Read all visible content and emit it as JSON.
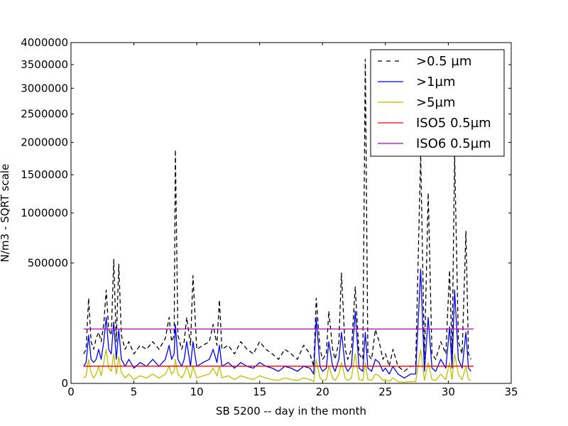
{
  "chart_data": {
    "type": "line",
    "title": "",
    "xlabel": "SB 5200 -- day in the month",
    "ylabel": "N/m3 - SQRT scale",
    "xlim": [
      0,
      35
    ],
    "ylim": [
      0,
      4000000
    ],
    "y_scale": "sqrt",
    "grid": false,
    "legend_position": "top-right",
    "x_ticks": [
      0,
      5,
      10,
      15,
      20,
      25,
      30,
      35
    ],
    "y_ticks": [
      0,
      500000,
      1000000,
      1500000,
      2000000,
      2500000,
      3000000,
      3500000,
      4000000
    ],
    "series": [
      {
        "name": ">0.5 µm",
        "color": "#000000",
        "style": "dashed",
        "x": [
          1.0,
          1.2,
          1.4,
          1.6,
          1.8,
          2.0,
          2.2,
          2.4,
          2.6,
          2.8,
          3.0,
          3.2,
          3.4,
          3.6,
          3.8,
          4.0,
          4.3,
          4.6,
          5.0,
          5.5,
          6.0,
          6.5,
          7.0,
          7.5,
          7.8,
          8.0,
          8.2,
          8.3,
          8.5,
          8.8,
          9.0,
          9.2,
          9.5,
          9.7,
          10.0,
          10.5,
          11.0,
          11.3,
          11.6,
          11.8,
          12.0,
          12.5,
          13.0,
          13.5,
          14.0,
          14.5,
          15.0,
          15.5,
          16.0,
          16.5,
          17.0,
          17.5,
          18.0,
          18.5,
          19.0,
          19.3,
          19.5,
          19.8,
          20.0,
          20.3,
          20.5,
          20.8,
          21.0,
          21.3,
          21.5,
          21.8,
          22.0,
          22.3,
          22.6,
          22.9,
          23.2,
          23.4,
          23.6,
          23.9,
          24.2,
          24.5,
          24.8,
          25.0,
          25.3,
          25.6,
          26.0,
          26.5,
          27.0,
          27.4,
          27.8,
          28.1,
          28.4,
          28.7,
          29.0,
          29.4,
          29.8,
          30.1,
          30.3,
          30.5,
          30.8,
          31.1,
          31.4,
          31.6,
          31.8
        ],
        "values": [
          30000,
          40000,
          250000,
          60000,
          40000,
          70000,
          90000,
          60000,
          120000,
          300000,
          100000,
          80000,
          530000,
          60000,
          490000,
          80000,
          40000,
          60000,
          30000,
          50000,
          40000,
          60000,
          40000,
          70000,
          150000,
          60000,
          80000,
          1880000,
          80000,
          40000,
          60000,
          150000,
          50000,
          400000,
          40000,
          50000,
          60000,
          120000,
          50000,
          240000,
          40000,
          50000,
          30000,
          60000,
          40000,
          30000,
          60000,
          40000,
          30000,
          20000,
          40000,
          30000,
          20000,
          50000,
          30000,
          10000,
          250000,
          40000,
          20000,
          30000,
          180000,
          40000,
          20000,
          60000,
          420000,
          40000,
          20000,
          40000,
          320000,
          30000,
          20000,
          3620000,
          30000,
          20000,
          100000,
          60000,
          20000,
          30000,
          10000,
          40000,
          10000,
          5000,
          10000,
          10000,
          1800000,
          20000,
          1250000,
          30000,
          20000,
          60000,
          30000,
          440000,
          30000,
          1800000,
          60000,
          30000,
          800000,
          30000,
          20000
        ]
      },
      {
        "name": ">1µm",
        "color": "#0000ff",
        "style": "solid",
        "x": [
          1.0,
          1.2,
          1.4,
          1.6,
          1.8,
          2.0,
          2.2,
          2.4,
          2.6,
          2.8,
          3.0,
          3.2,
          3.4,
          3.6,
          3.8,
          4.0,
          4.3,
          4.6,
          5.0,
          5.5,
          6.0,
          6.5,
          7.0,
          7.5,
          7.8,
          8.0,
          8.2,
          8.3,
          8.5,
          8.8,
          9.0,
          9.2,
          9.5,
          9.7,
          10.0,
          10.5,
          11.0,
          11.3,
          11.6,
          11.8,
          12.0,
          12.5,
          13.0,
          13.5,
          14.0,
          14.5,
          15.0,
          15.5,
          16.0,
          16.5,
          17.0,
          17.5,
          18.0,
          18.5,
          19.0,
          19.3,
          19.5,
          19.8,
          20.0,
          20.3,
          20.5,
          20.8,
          21.0,
          21.3,
          21.5,
          21.8,
          22.0,
          22.3,
          22.6,
          22.9,
          23.2,
          23.4,
          23.6,
          23.9,
          24.2,
          24.5,
          24.8,
          25.0,
          25.3,
          25.6,
          26.0,
          26.5,
          27.0,
          27.4,
          27.8,
          28.1,
          28.4,
          28.7,
          29.0,
          29.4,
          29.8,
          30.1,
          30.3,
          30.5,
          30.8,
          31.1,
          31.4,
          31.6,
          31.8
        ],
        "values": [
          10000,
          15000,
          80000,
          20000,
          15000,
          20000,
          40000,
          20000,
          60000,
          150000,
          40000,
          30000,
          130000,
          20000,
          100000,
          20000,
          10000,
          20000,
          8000,
          15000,
          10000,
          20000,
          10000,
          20000,
          50000,
          20000,
          30000,
          120000,
          20000,
          10000,
          20000,
          60000,
          10000,
          60000,
          10000,
          15000,
          20000,
          40000,
          15000,
          50000,
          10000,
          15000,
          8000,
          15000,
          10000,
          8000,
          15000,
          10000,
          8000,
          5000,
          10000,
          8000,
          5000,
          10000,
          8000,
          3000,
          150000,
          10000,
          5000,
          8000,
          60000,
          10000,
          5000,
          20000,
          90000,
          10000,
          5000,
          10000,
          180000,
          8000,
          5000,
          90000,
          8000,
          5000,
          20000,
          15000,
          5000,
          8000,
          3000,
          10000,
          3000,
          1000,
          3000,
          3000,
          450000,
          5000,
          150000,
          8000,
          5000,
          20000,
          8000,
          110000,
          8000,
          300000,
          20000,
          8000,
          90000,
          8000,
          5000
        ]
      },
      {
        "name": ">5µm",
        "color": "#bfbf00",
        "style": "solid",
        "x": [
          1.0,
          1.2,
          1.4,
          1.6,
          1.8,
          2.0,
          2.2,
          2.4,
          2.6,
          2.8,
          3.0,
          3.2,
          3.4,
          3.6,
          3.8,
          4.0,
          4.3,
          4.6,
          5.0,
          5.5,
          6.0,
          6.5,
          7.0,
          7.5,
          7.8,
          8.0,
          8.2,
          8.3,
          8.5,
          8.8,
          9.0,
          9.2,
          9.5,
          9.7,
          10.0,
          10.5,
          11.0,
          11.3,
          11.6,
          11.8,
          12.0,
          12.5,
          13.0,
          13.5,
          14.0,
          14.5,
          15.0,
          15.5,
          16.0,
          16.5,
          17.0,
          17.5,
          18.0,
          18.5,
          19.0,
          19.3,
          19.5,
          19.8,
          20.0,
          20.3,
          20.5,
          20.8,
          21.0,
          21.3,
          21.5,
          21.8,
          22.0,
          22.3,
          22.6,
          22.9,
          23.2,
          23.4,
          23.6,
          23.9,
          24.2,
          24.5,
          24.8,
          25.0,
          25.3,
          25.6,
          26.0,
          26.5,
          27.0,
          27.4,
          27.8,
          28.1,
          28.4,
          28.7,
          29.0,
          29.4,
          29.8,
          30.1,
          30.3,
          30.5,
          30.8,
          31.1,
          31.4,
          31.6,
          31.8
        ],
        "values": [
          1000,
          2000,
          20000,
          4000,
          1000,
          3000,
          10000,
          2000,
          15000,
          40000,
          8000,
          5000,
          30000,
          3000,
          25000,
          4000,
          1000,
          3000,
          500,
          2000,
          1000,
          3000,
          1000,
          3000,
          10000,
          3000,
          5000,
          20000,
          3000,
          1000,
          3000,
          10000,
          1000,
          10000,
          1000,
          2000,
          3000,
          8000,
          2000,
          10000,
          1000,
          2000,
          500,
          2000,
          1000,
          500,
          2000,
          1000,
          500,
          300,
          1000,
          500,
          300,
          1000,
          500,
          100,
          20000,
          1000,
          300,
          500,
          10000,
          1000,
          300,
          3000,
          15000,
          1000,
          300,
          1000,
          30000,
          500,
          300,
          15000,
          500,
          300,
          3000,
          2000,
          300,
          500,
          100,
          1000,
          100,
          50,
          100,
          100,
          40000,
          300,
          15000,
          500,
          300,
          3000,
          500,
          15000,
          500,
          30000,
          3000,
          500,
          10000,
          500,
          300
        ]
      },
      {
        "name": "ISO5 0.5µm",
        "color": "#ff0000",
        "style": "solid",
        "x": [
          1.0,
          32.0
        ],
        "values": [
          10200,
          10200
        ]
      },
      {
        "name": "ISO6 0.5µm",
        "color": "#bf00bf",
        "style": "solid",
        "x": [
          1.0,
          32.0
        ],
        "values": [
          102000,
          102000
        ]
      }
    ]
  }
}
